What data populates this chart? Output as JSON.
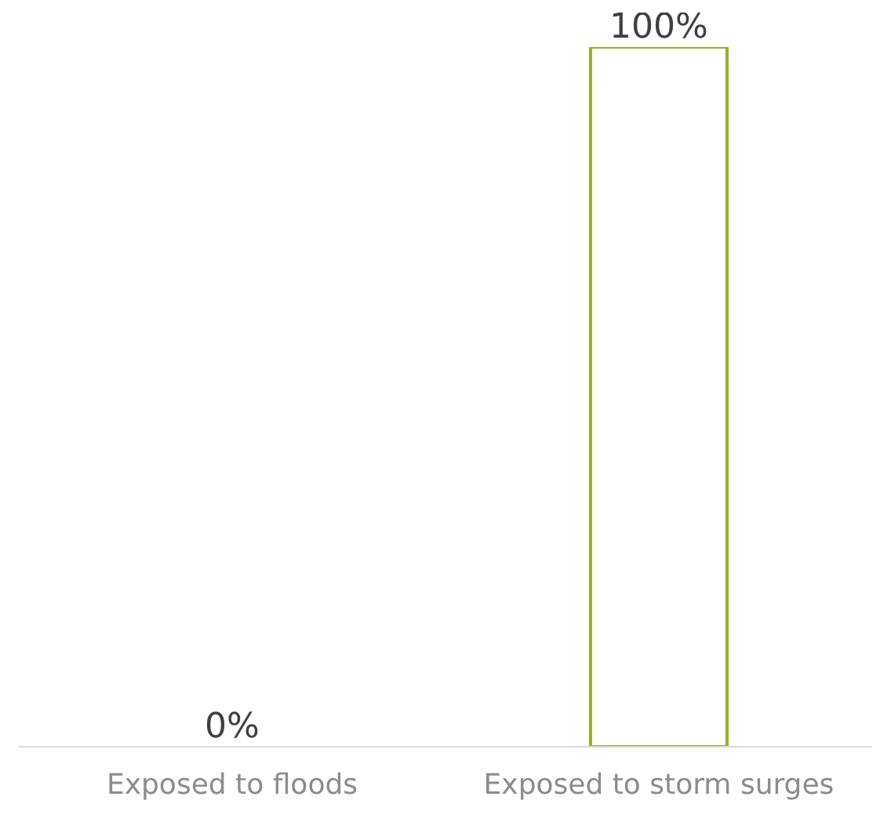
{
  "chart_data": {
    "type": "bar",
    "categories": [
      "Exposed to floods",
      "Exposed to storm surges"
    ],
    "values": [
      0,
      100
    ],
    "color": "#8db32a",
    "value_labels": [
      "0%",
      "100%"
    ]
  }
}
